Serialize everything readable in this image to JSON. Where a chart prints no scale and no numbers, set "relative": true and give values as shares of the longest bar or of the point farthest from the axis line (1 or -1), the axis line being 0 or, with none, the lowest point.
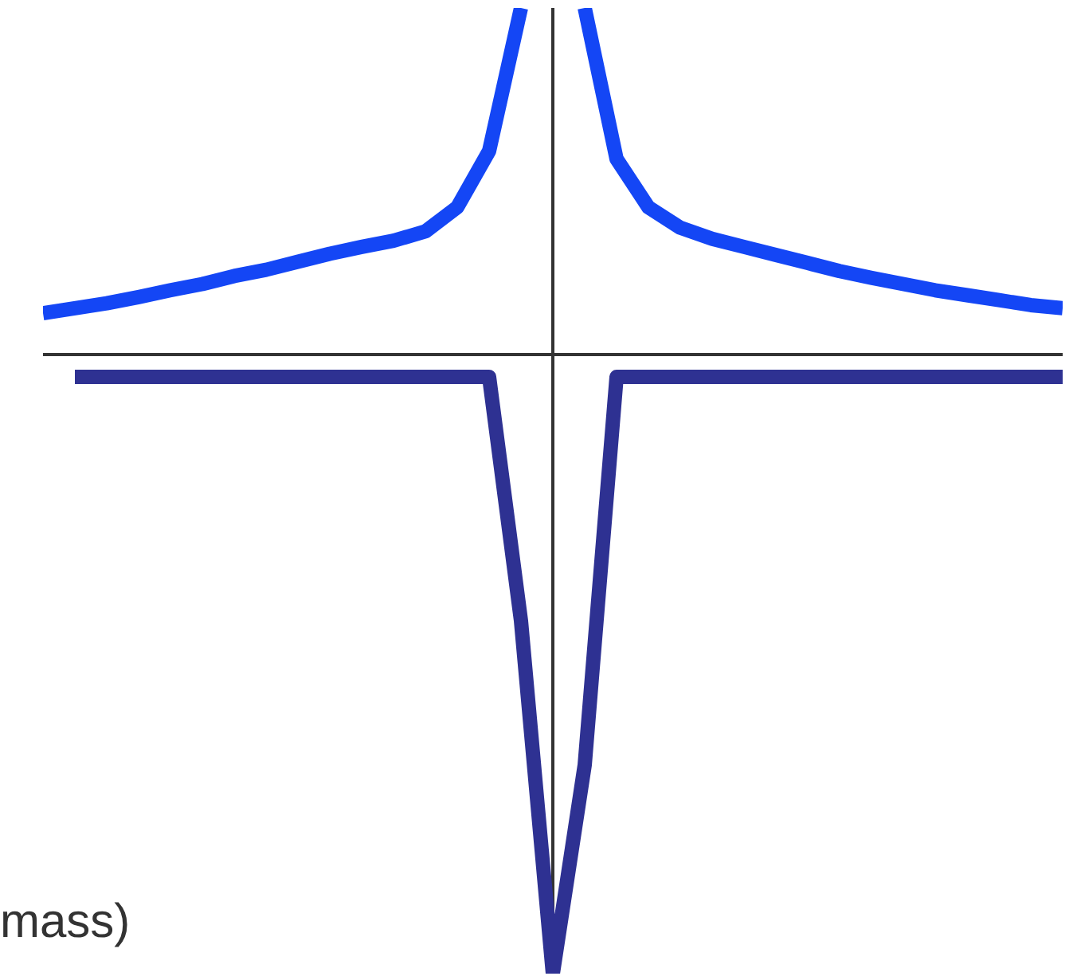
{
  "chart_data": {
    "type": "line",
    "relative": true,
    "grid": false,
    "marker": "none",
    "line_style": "solid",
    "categories": [
      null,
      null,
      null,
      null,
      null,
      null,
      null,
      null,
      null,
      null,
      null,
      null,
      null,
      null,
      null,
      null,
      null,
      null,
      null,
      null,
      null,
      null,
      null,
      null,
      null,
      null,
      null,
      null,
      null,
      null,
      null,
      null,
      null
    ],
    "series": [
      {
        "color": "#1446f5",
        "values": [
          0.067,
          0.075,
          0.083,
          0.093,
          0.104,
          0.114,
          0.127,
          0.137,
          0.15,
          0.163,
          0.174,
          0.184,
          0.199,
          0.238,
          0.329,
          0.56,
          null,
          null,
          null,
          null,
          null,
          null,
          null,
          null,
          null,
          null,
          null,
          null,
          null,
          null,
          null,
          null,
          null
        ]
      },
      {
        "color": "#1446f5",
        "values": [
          null,
          null,
          null,
          null,
          null,
          null,
          null,
          null,
          null,
          null,
          null,
          null,
          null,
          null,
          null,
          null,
          null,
          0.56,
          0.316,
          0.238,
          0.205,
          0.187,
          0.174,
          0.161,
          0.148,
          0.135,
          0.124,
          0.114,
          0.104,
          0.096,
          0.088,
          0.08,
          0.075
        ]
      },
      {
        "color": "#2e3192",
        "values": [
          null,
          -0.036,
          -0.036,
          -0.036,
          -0.036,
          -0.036,
          -0.036,
          -0.036,
          -0.036,
          -0.036,
          -0.036,
          -0.036,
          -0.036,
          -0.036,
          -0.036,
          -0.43,
          -1,
          -0.663,
          -0.036,
          -0.036,
          -0.036,
          -0.036,
          -0.036,
          -0.036,
          -0.036,
          -0.036,
          -0.036,
          -0.036,
          -0.036,
          -0.036,
          -0.036,
          -0.036,
          -0.036
        ]
      }
    ],
    "annotations": [
      "mass)"
    ]
  }
}
